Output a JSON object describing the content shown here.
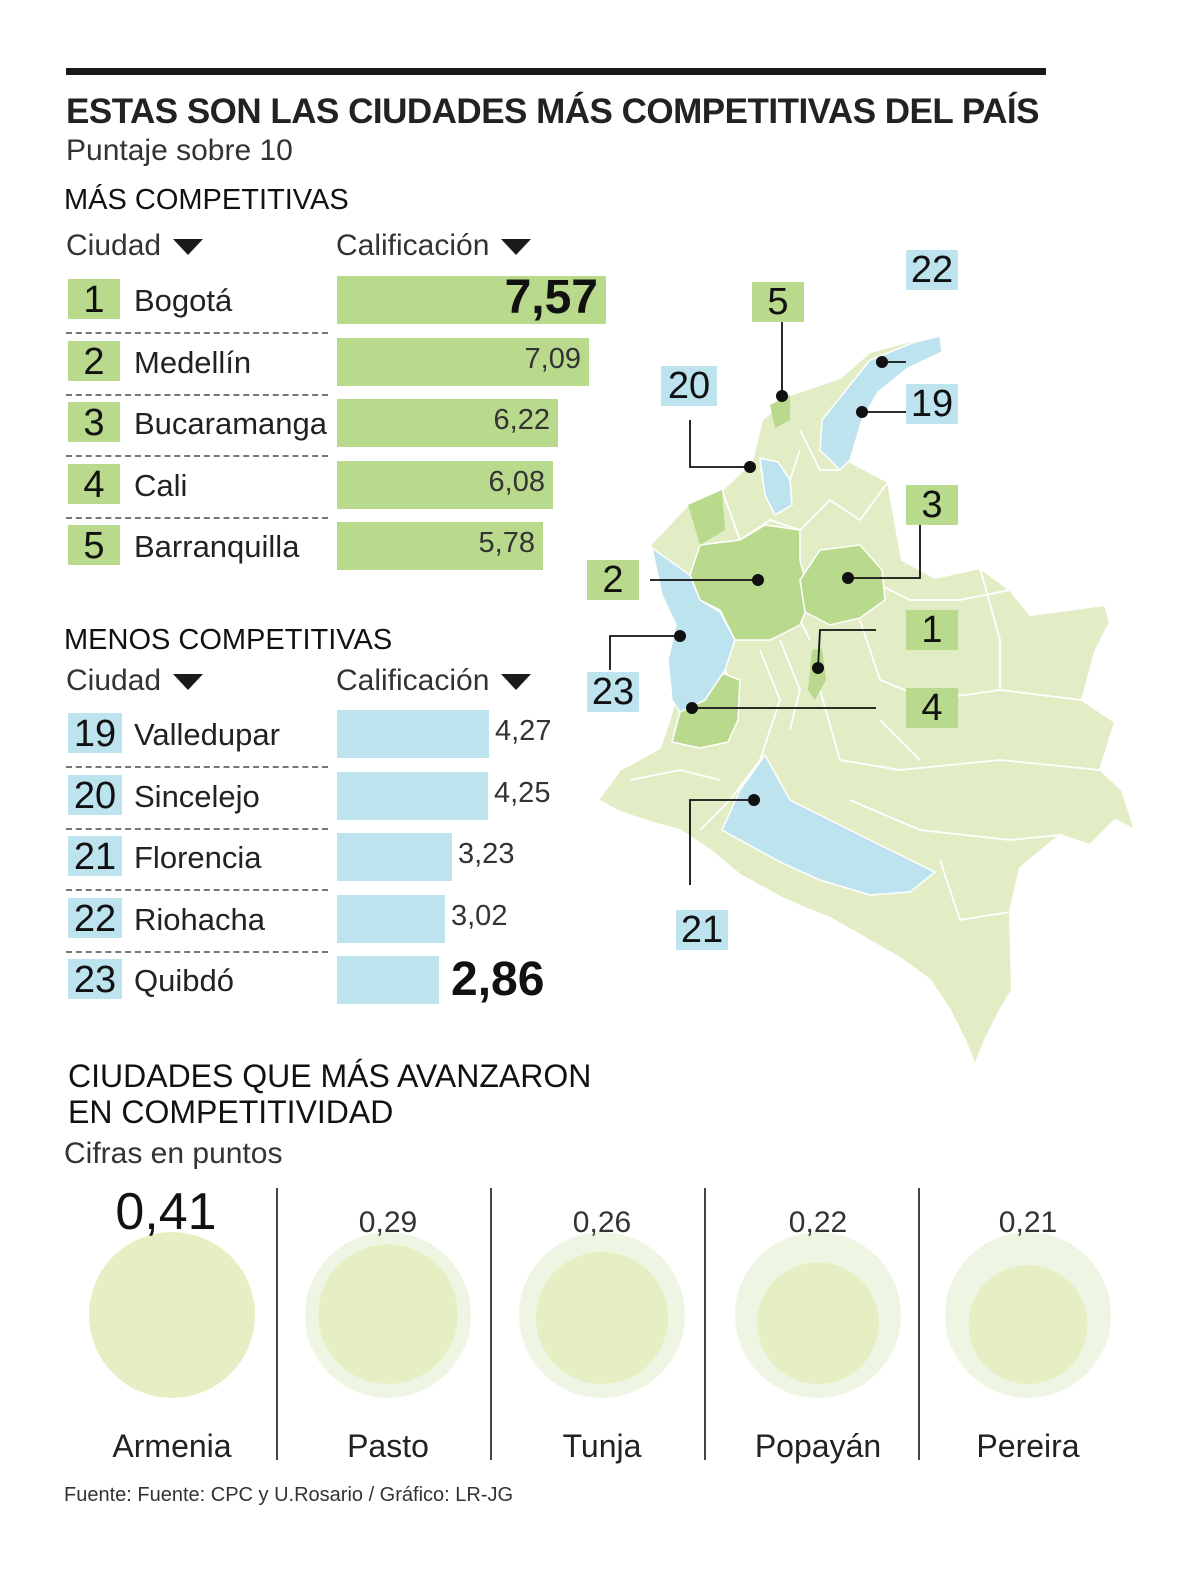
{
  "title": "ESTAS SON LAS CIUDADES MÁS COMPETITIVAS DEL PAÍS",
  "subtitle": "Puntaje sobre 10",
  "top": {
    "heading": "MÁS COMPETITIVAS",
    "col_city": "Ciudad",
    "col_score": "Calificación",
    "rows": [
      {
        "rank": "1",
        "city": "Bogotá",
        "value": "7,57"
      },
      {
        "rank": "2",
        "city": "Medellín",
        "value": "7,09"
      },
      {
        "rank": "3",
        "city": "Bucaramanga",
        "value": "6,22"
      },
      {
        "rank": "4",
        "city": "Cali",
        "value": "6,08"
      },
      {
        "rank": "5",
        "city": "Barranquilla",
        "value": "5,78"
      }
    ]
  },
  "bottom": {
    "heading": "MENOS COMPETITIVAS",
    "col_city": "Ciudad",
    "col_score": "Calificación",
    "rows": [
      {
        "rank": "19",
        "city": "Valledupar",
        "value": "4,27"
      },
      {
        "rank": "20",
        "city": "Sincelejo",
        "value": "4,25"
      },
      {
        "rank": "21",
        "city": "Florencia",
        "value": "3,23"
      },
      {
        "rank": "22",
        "city": "Riohacha",
        "value": "3,02"
      },
      {
        "rank": "23",
        "city": "Quibdó",
        "value": "2,86"
      }
    ]
  },
  "map_labels": [
    "22",
    "5",
    "20",
    "19",
    "3",
    "2",
    "1",
    "23",
    "4",
    "21"
  ],
  "advance": {
    "heading_line1": "CIUDADES QUE MÁS AVANZARON",
    "heading_line2": "EN COMPETITIVIDAD",
    "unit": "Cifras en puntos",
    "items": [
      {
        "city": "Armenia",
        "value": "0,41"
      },
      {
        "city": "Pasto",
        "value": "0,29"
      },
      {
        "city": "Tunja",
        "value": "0,26"
      },
      {
        "city": "Popayán",
        "value": "0,22"
      },
      {
        "city": "Pereira",
        "value": "0,21"
      }
    ]
  },
  "source": "Fuente: Fuente: CPC y U.Rosario / Gráfico: LR-JG",
  "colors": {
    "green": "#b9d98c",
    "blue": "#bde3ef",
    "map_base": "#e2edc6",
    "bubble": "#e5efc3",
    "bubble_ref": "#eef5e2"
  },
  "chart_data": [
    {
      "type": "bar",
      "title": "MÁS COMPETITIVAS",
      "categories": [
        "Bogotá",
        "Medellín",
        "Bucaramanga",
        "Cali",
        "Barranquilla"
      ],
      "values": [
        7.57,
        7.09,
        6.22,
        6.08,
        5.78
      ],
      "xlim": [
        0,
        10
      ]
    },
    {
      "type": "bar",
      "title": "MENOS COMPETITIVAS",
      "categories": [
        "Valledupar",
        "Sincelejo",
        "Florencia",
        "Riohacha",
        "Quibdó"
      ],
      "values": [
        4.27,
        4.25,
        3.23,
        3.02,
        2.86
      ],
      "xlim": [
        0,
        10
      ]
    },
    {
      "type": "scatter",
      "title": "CIUDADES QUE MÁS AVANZARON EN COMPETITIVIDAD",
      "categories": [
        "Armenia",
        "Pasto",
        "Tunja",
        "Popayán",
        "Pereira"
      ],
      "values": [
        0.41,
        0.29,
        0.26,
        0.22,
        0.21
      ]
    }
  ]
}
